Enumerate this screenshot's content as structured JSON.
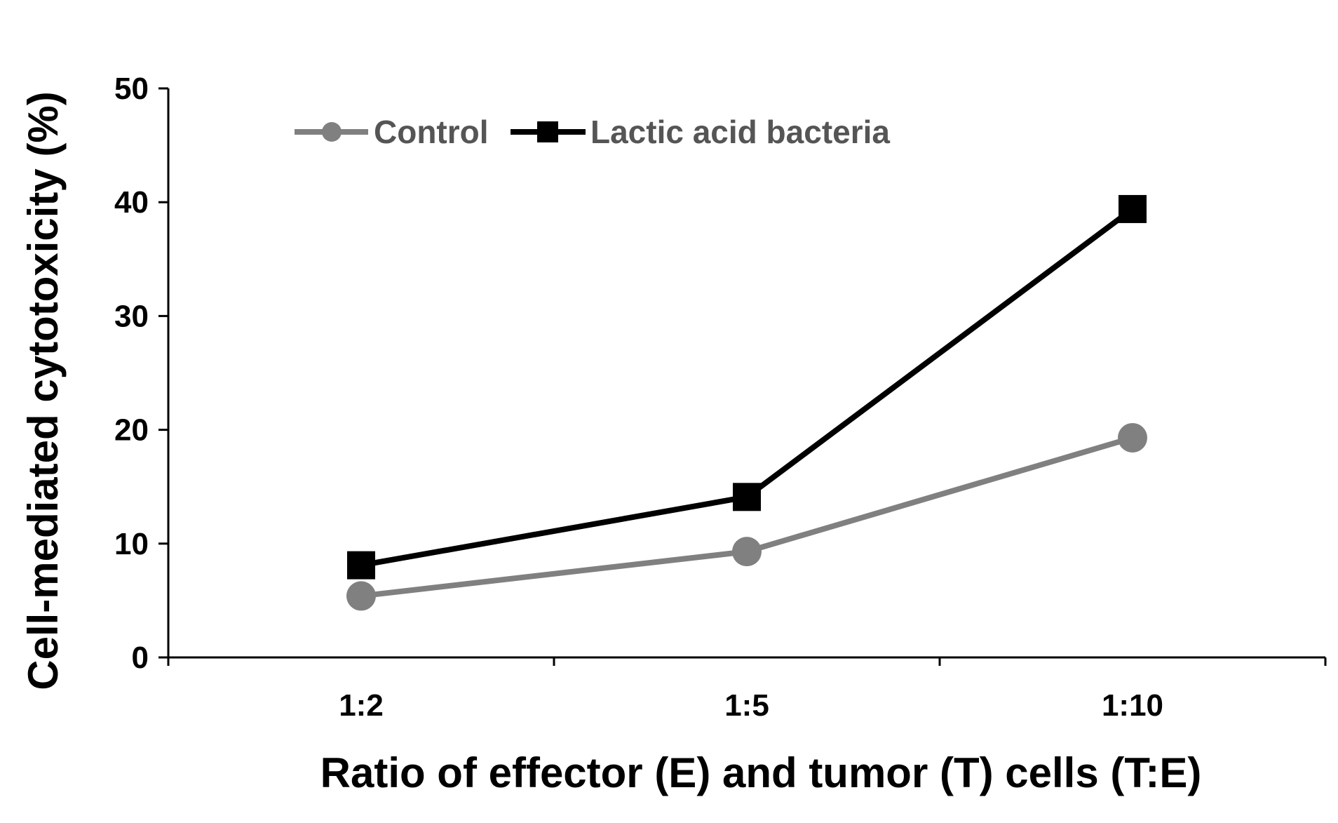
{
  "chart_data": {
    "type": "line",
    "title": "",
    "xlabel": "Ratio of effector (E) and tumor (T) cells (T:E)",
    "ylabel": "Cell-mediated cytotoxicity (%)",
    "categories": [
      "1:2",
      "1:5",
      "1:10"
    ],
    "ylim": [
      0,
      50
    ],
    "yticks": [
      "0",
      "10",
      "20",
      "30",
      "40",
      "50"
    ],
    "grid": false,
    "legend_position": "top-left",
    "series": [
      {
        "name": "Control",
        "values": [
          5.4,
          9.3,
          19.3
        ],
        "color": "#808080",
        "marker": "circle"
      },
      {
        "name": "Lactic acid bacteria",
        "values": [
          8.1,
          14.1,
          39.4
        ],
        "color": "#000000",
        "marker": "square"
      }
    ]
  }
}
